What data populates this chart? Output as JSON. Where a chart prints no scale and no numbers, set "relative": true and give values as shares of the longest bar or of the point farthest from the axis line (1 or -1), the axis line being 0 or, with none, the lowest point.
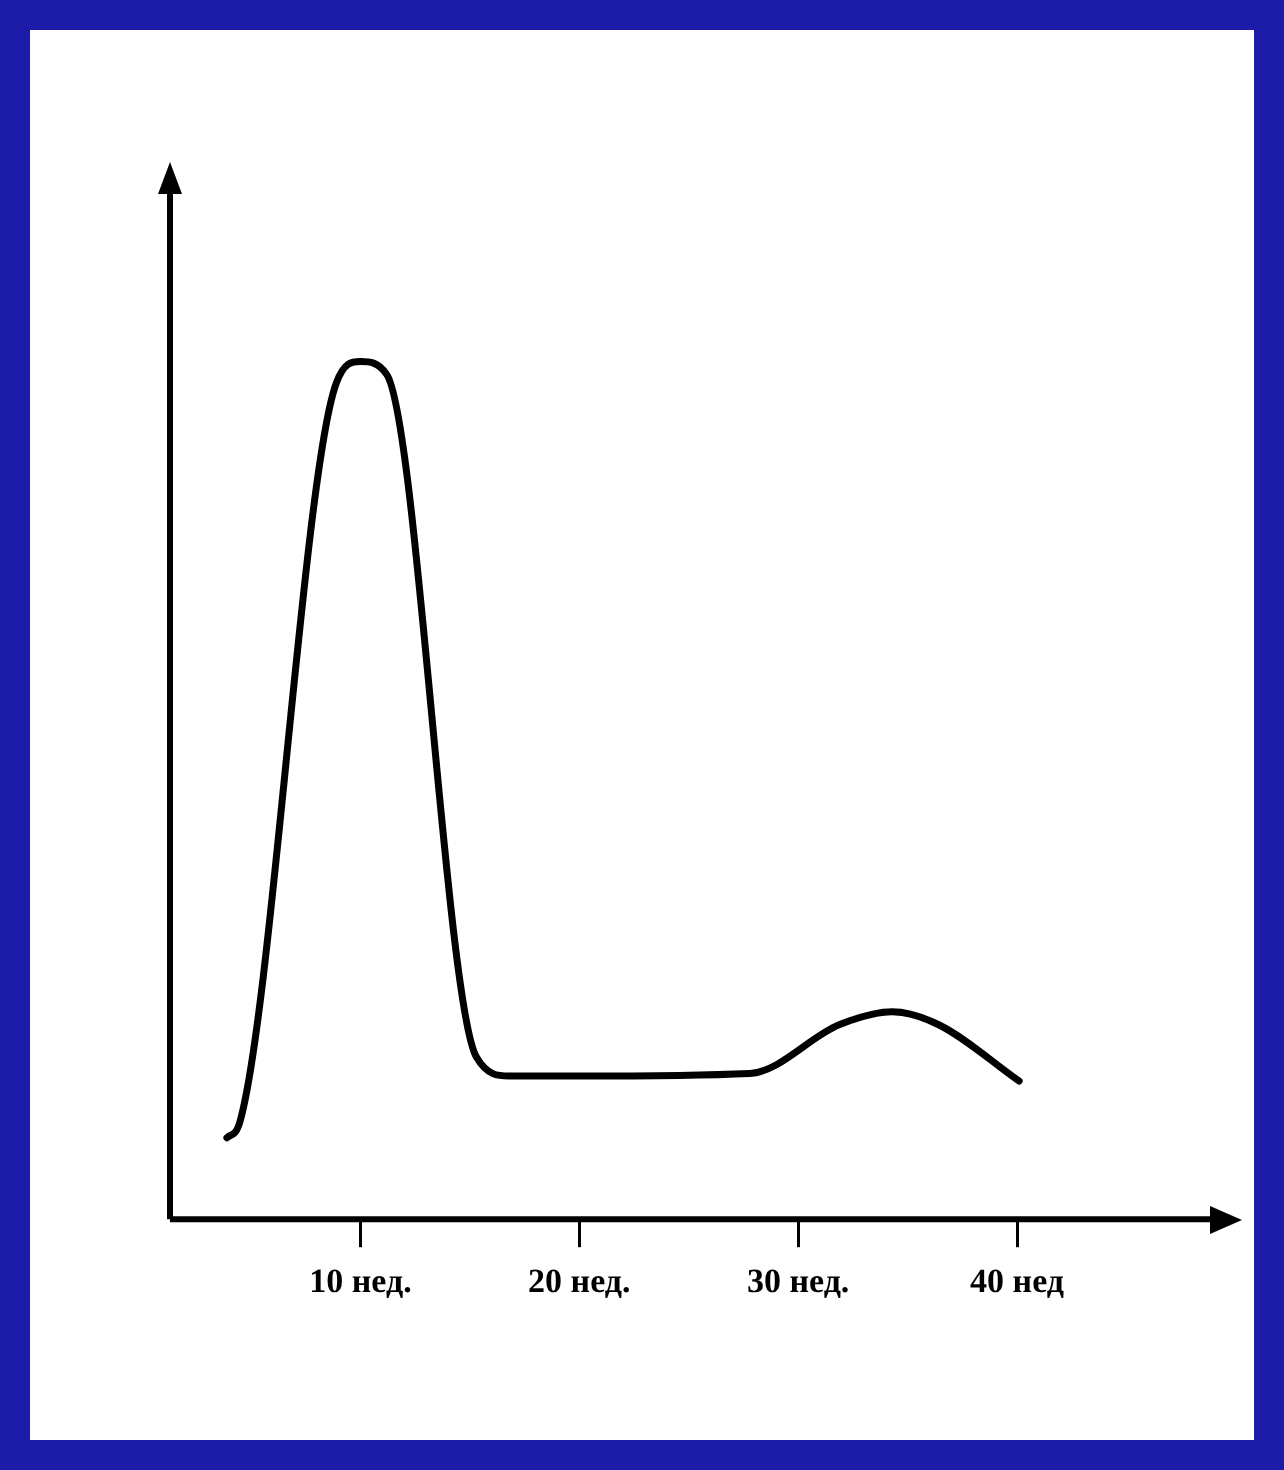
{
  "chart_data": {
    "type": "line",
    "relative": true,
    "color": "#000000",
    "marker": "none",
    "line_style": "solid",
    "grid": false,
    "legend": false,
    "xlim": [
      1.3,
      49
    ],
    "xticks": [
      {
        "value": 10,
        "label": "10 нед."
      },
      {
        "value": 20,
        "label": "20 нед."
      },
      {
        "value": 30,
        "label": "30 нед."
      },
      {
        "value": 40,
        "label": "40 нед"
      }
    ],
    "x": [
      3.9,
      4.5,
      8.9,
      10,
      11.2,
      15.3,
      16.8,
      20,
      27.8,
      31.9,
      34.3,
      36.4,
      40.1
    ],
    "values": [
      0.095,
      0.114,
      0.975,
      1,
      0.985,
      0.189,
      0.167,
      0.167,
      0.17,
      0.227,
      0.242,
      0.227,
      0.161
    ]
  }
}
